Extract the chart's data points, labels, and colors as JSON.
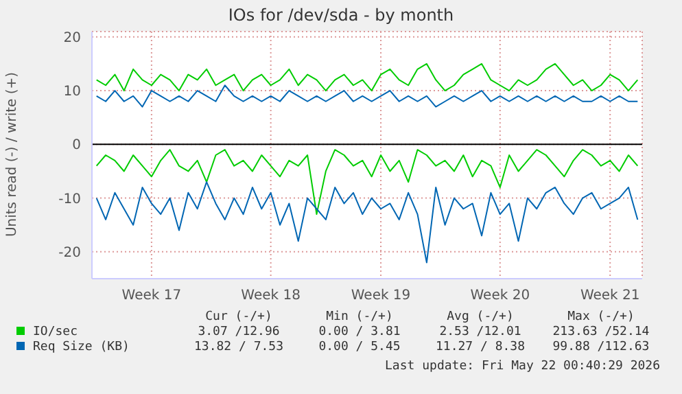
{
  "chart_data": {
    "type": "line",
    "title": "IOs for /dev/sda - by month",
    "ylabel": "Units read (-) / write (+)",
    "categories": [
      null,
      null,
      null,
      null,
      null,
      null,
      "Week 17",
      null,
      null,
      null,
      null,
      null,
      null,
      null,
      null,
      null,
      null,
      null,
      null,
      "Week 18",
      null,
      null,
      null,
      null,
      null,
      null,
      null,
      null,
      null,
      null,
      null,
      "Week 19",
      null,
      null,
      null,
      null,
      null,
      null,
      null,
      null,
      null,
      null,
      null,
      null,
      "Week 20",
      null,
      null,
      null,
      null,
      null,
      null,
      null,
      null,
      null,
      null,
      null,
      "Week 21",
      null,
      null,
      null
    ],
    "series": [
      {
        "name": "IO/sec",
        "color": "#00cc00",
        "values": [
          12,
          11,
          13,
          10,
          14,
          12,
          11,
          13,
          12,
          10,
          13,
          12,
          14,
          11,
          12,
          13,
          10,
          12,
          13,
          11,
          12,
          14,
          11,
          13,
          12,
          10,
          12,
          13,
          11,
          12,
          10,
          13,
          14,
          12,
          11,
          14,
          15,
          12,
          10,
          11,
          13,
          14,
          15,
          12,
          11,
          10,
          12,
          11,
          12,
          14,
          15,
          13,
          11,
          12,
          10,
          11,
          13,
          12,
          10,
          12
        ]
      },
      {
        "color": "#00cc00",
        "values": [
          -4,
          -2,
          -3,
          -5,
          -2,
          -4,
          -6,
          -3,
          -1,
          -4,
          -5,
          -3,
          -7,
          -2,
          -1,
          -4,
          -3,
          -5,
          -2,
          -4,
          -6,
          -3,
          -4,
          -2,
          -13,
          -5,
          -1,
          -2,
          -4,
          -3,
          -6,
          -2,
          -5,
          -3,
          -7,
          -1,
          -2,
          -4,
          -3,
          -5,
          -2,
          -6,
          -3,
          -4,
          -8,
          -2,
          -5,
          -3,
          -1,
          -2,
          -4,
          -6,
          -3,
          -1,
          -2,
          -4,
          -3,
          -5,
          -2,
          -4
        ]
      },
      {
        "name": "Req Size (KB)",
        "color": "#0066b3",
        "values": [
          9,
          8,
          10,
          8,
          9,
          7,
          10,
          9,
          8,
          9,
          8,
          10,
          9,
          8,
          11,
          9,
          8,
          9,
          8,
          9,
          8,
          10,
          9,
          8,
          9,
          8,
          9,
          10,
          8,
          9,
          8,
          9,
          10,
          8,
          9,
          8,
          9,
          7,
          8,
          9,
          8,
          9,
          10,
          8,
          9,
          8,
          9,
          8,
          9,
          8,
          9,
          8,
          9,
          8,
          8,
          9,
          8,
          9,
          8,
          8
        ]
      },
      {
        "color": "#0066b3",
        "values": [
          -10,
          -14,
          -9,
          -12,
          -15,
          -8,
          -11,
          -13,
          -10,
          -16,
          -9,
          -12,
          -7,
          -11,
          -14,
          -10,
          -13,
          -8,
          -12,
          -9,
          -15,
          -11,
          -18,
          -10,
          -12,
          -14,
          -8,
          -11,
          -9,
          -13,
          -10,
          -12,
          -11,
          -14,
          -9,
          -13,
          -22,
          -8,
          -15,
          -10,
          -12,
          -11,
          -17,
          -9,
          -13,
          -11,
          -18,
          -10,
          -12,
          -9,
          -8,
          -11,
          -13,
          -10,
          -9,
          -12,
          -11,
          -10,
          -8,
          -14
        ]
      }
    ],
    "ylim": [
      -25,
      21
    ],
    "yticks": [
      -20,
      -10,
      0,
      10,
      20
    ],
    "grid": true,
    "ref_lines": [
      {
        "axis": "y",
        "value": 0,
        "color": "#000000"
      }
    ],
    "legend": "bottom",
    "line_style": "solid",
    "marker": "none",
    "annotations": [
      "Cur (-/+)",
      "Min (-/+)",
      "Avg (-/+)",
      "Max (-/+)",
      "3.07 /12.96",
      "0.00 / 3.81",
      "2.53 /12.01",
      "213.63 /52.14",
      "13.82 / 7.53",
      "0.00 / 5.45",
      "11.27 / 8.38",
      "99.88 /112.63",
      "Last update: Fri May 22 00:40:29 2026"
    ]
  }
}
